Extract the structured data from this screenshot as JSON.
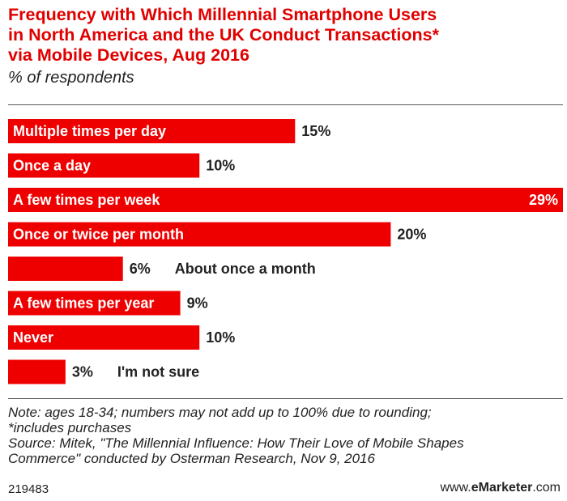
{
  "header": {
    "title_lines": [
      "Frequency with Which Millennial Smartphone Users",
      "in North America and the UK Conduct Transactions*",
      "via Mobile Devices, Aug 2016"
    ],
    "subtitle": "% of respondents"
  },
  "colors": {
    "bar": "#ee0000",
    "title": "#e10000",
    "text": "#222222"
  },
  "chart_data": {
    "type": "bar",
    "orientation": "horizontal",
    "title": "Frequency with Which Millennial Smartphone Users in North America and the UK Conduct Transactions* via Mobile Devices, Aug 2016",
    "subtitle": "% of respondents",
    "categories": [
      "Multiple times per day",
      "Once a day",
      "A few times per week",
      "Once or twice per month",
      "About once a month",
      "A few times per year",
      "Never",
      "I'm not sure"
    ],
    "values": [
      15,
      10,
      29,
      20,
      6,
      9,
      10,
      3
    ],
    "value_labels": [
      "15%",
      "10%",
      "29%",
      "20%",
      "6%",
      "9%",
      "10%",
      "3%"
    ],
    "xlim": [
      0,
      29
    ],
    "grid": false,
    "legend": "none"
  },
  "footer": {
    "note_lines": [
      "Note: ages 18-34; numbers may not add up to 100% due to rounding;",
      "*includes purchases",
      "Source: Mitek, \"The Millennial Influence: How Their Love of Mobile Shapes",
      "Commerce\" conducted by Osterman Research, Nov 9, 2016"
    ],
    "id": "219483",
    "brand_prefix": "www.",
    "brand_bold": "eMarketer",
    "brand_suffix": ".com"
  }
}
